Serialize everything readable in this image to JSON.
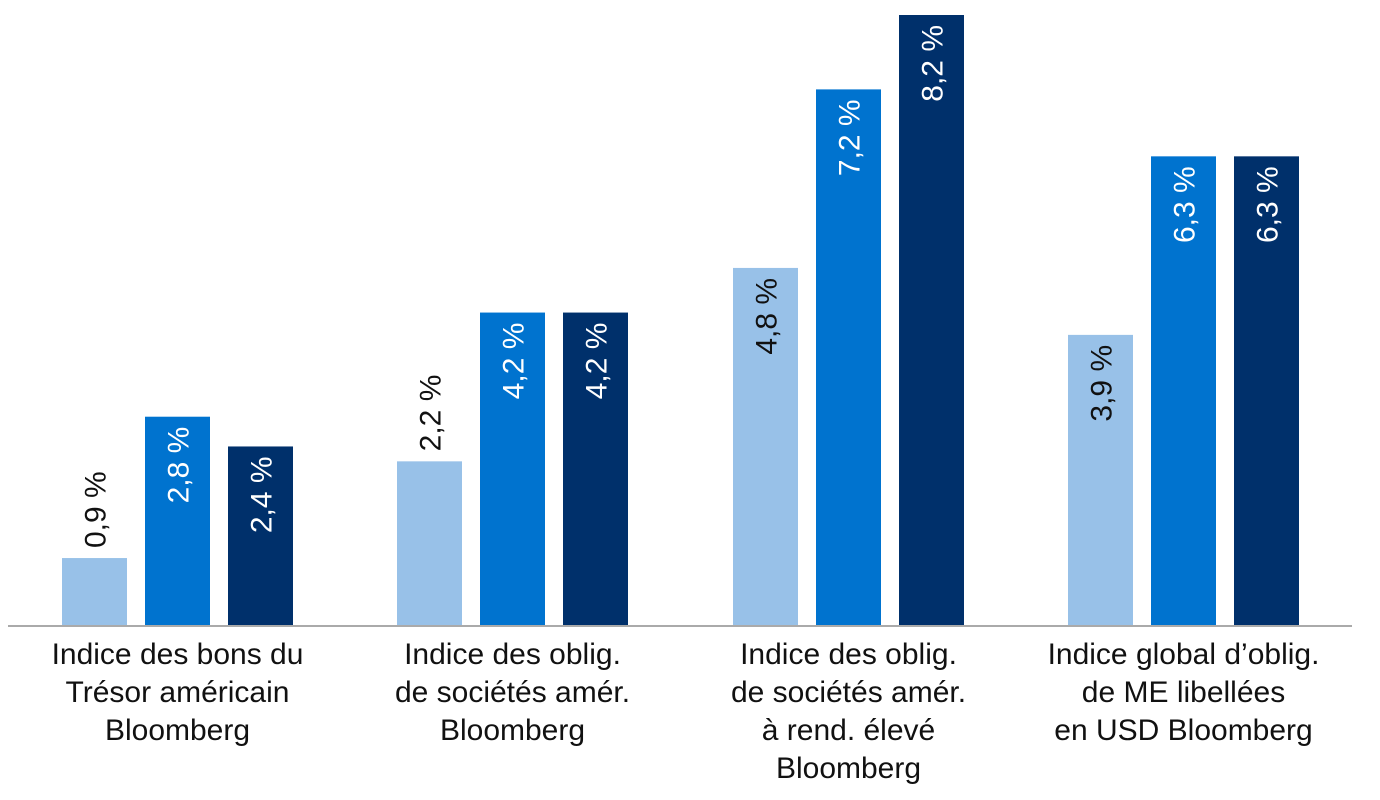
{
  "chart_data": {
    "type": "bar",
    "categories": [
      [
        "Indice des bons du",
        "Trésor américain",
        "Bloomberg"
      ],
      [
        "Indice des oblig.",
        "de sociétés amér.",
        "Bloomberg"
      ],
      [
        "Indice des oblig.",
        "de sociétés amér.",
        "à rend. élevé",
        "Bloomberg"
      ],
      [
        "Indice global d’oblig.",
        "de ME libellées",
        "en USD Bloomberg"
      ]
    ],
    "series": [
      {
        "values": [
          0.9,
          2.2,
          4.8,
          3.9
        ],
        "labels": [
          "0,9 %",
          "2,2 %",
          "4,8 %",
          "3,9 %"
        ],
        "color": "#98c1e8",
        "label_color": "#111111"
      },
      {
        "values": [
          2.8,
          4.2,
          7.2,
          6.3
        ],
        "labels": [
          "2,8 %",
          "4,2 %",
          "7,2 %",
          "6,3 %"
        ],
        "color": "#0073cf",
        "label_color": "#ffffff"
      },
      {
        "values": [
          2.4,
          4.2,
          8.2,
          6.3
        ],
        "labels": [
          "2,4 %",
          "4,2 %",
          "8,2 %",
          "6,3 %"
        ],
        "color": "#00306b",
        "label_color": "#ffffff"
      }
    ],
    "ylim": [
      0,
      8.2
    ],
    "grid": false,
    "legend": "none",
    "axis_color": "#aaaaaa"
  }
}
